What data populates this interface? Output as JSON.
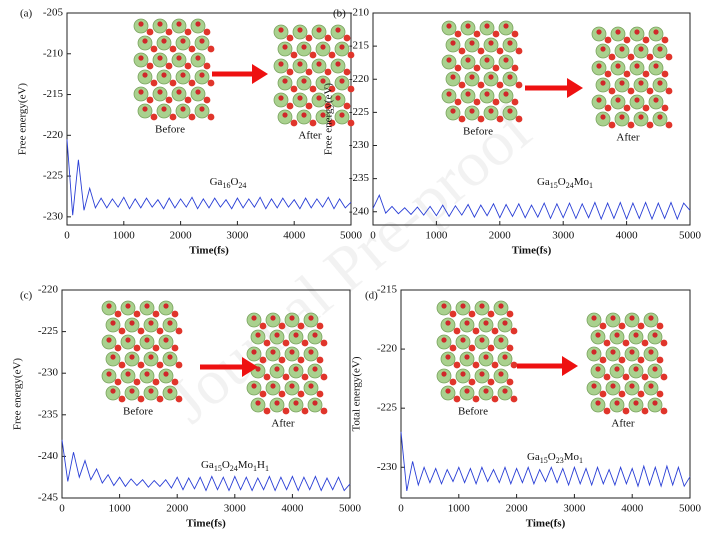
{
  "watermark": "Journal Pre-proof",
  "chart_data": [
    {
      "type": "line",
      "panel_label": "(a)",
      "formula": "Ga16O24",
      "x_label": "Time(fs)",
      "y_label": "Free energy(eV)",
      "annotations": [
        "Before",
        "After"
      ],
      "color": "#2a3fd6",
      "xlim": [
        0,
        5000
      ],
      "xticks": [
        0,
        1000,
        2000,
        3000,
        4000,
        5000
      ],
      "ylim": [
        -231,
        -205
      ],
      "yticks": [
        -205,
        -210,
        -215,
        -220,
        -225,
        -230
      ],
      "x": [
        0,
        100,
        200,
        300,
        400,
        500,
        600,
        700,
        800,
        900,
        1000,
        1100,
        1200,
        1300,
        1400,
        1500,
        1600,
        1700,
        1800,
        1900,
        2000,
        2100,
        2200,
        2300,
        2400,
        2500,
        2600,
        2700,
        2800,
        2900,
        3000,
        3100,
        3200,
        3300,
        3400,
        3500,
        3600,
        3700,
        3800,
        3900,
        4000,
        4100,
        4200,
        4300,
        4400,
        4500,
        4600,
        4700,
        4800,
        4900,
        5000
      ],
      "y": [
        -220.5,
        -229.8,
        -223,
        -229.2,
        -226.5,
        -228.9,
        -227.7,
        -228.9,
        -227.8,
        -228.8,
        -227.6,
        -229,
        -227.8,
        -228.9,
        -227.7,
        -228.8,
        -227.9,
        -229,
        -227.7,
        -228.9,
        -227.8,
        -228.8,
        -227.6,
        -229,
        -227.8,
        -228.9,
        -227.7,
        -228.8,
        -227.9,
        -229,
        -227.7,
        -228.9,
        -227.8,
        -228.8,
        -227.6,
        -229,
        -227.8,
        -228.9,
        -227.7,
        -228.8,
        -227.9,
        -229,
        -227.7,
        -228.9,
        -227.8,
        -228.8,
        -227.6,
        -229,
        -227.8,
        -228.9,
        -228.2
      ]
    },
    {
      "type": "line",
      "panel_label": "(b)",
      "formula": "Ga15O24Mo1",
      "x_label": "Time(fs)",
      "y_label": "Free energy(eV)",
      "annotations": [
        "Before",
        "After"
      ],
      "color": "#2a3fd6",
      "xlim": [
        0,
        5000
      ],
      "xticks": [
        0,
        1000,
        2000,
        3000,
        4000,
        5000
      ],
      "ylim": [
        -242,
        -210
      ],
      "yticks": [
        -210,
        -215,
        -220,
        -225,
        -230,
        -235,
        -240
      ],
      "x": [
        0,
        100,
        200,
        300,
        400,
        500,
        600,
        700,
        800,
        900,
        1000,
        1100,
        1200,
        1300,
        1400,
        1500,
        1600,
        1700,
        1800,
        1900,
        2000,
        2100,
        2200,
        2300,
        2400,
        2500,
        2600,
        2700,
        2800,
        2900,
        3000,
        3100,
        3200,
        3300,
        3400,
        3500,
        3600,
        3700,
        3800,
        3900,
        4000,
        4100,
        4200,
        4300,
        4400,
        4500,
        4600,
        4700,
        4800,
        4900,
        5000
      ],
      "y": [
        -239.5,
        -237.5,
        -240.2,
        -239.2,
        -240.3,
        -239.4,
        -240.4,
        -239.3,
        -240.5,
        -239.2,
        -240.6,
        -239,
        -240.7,
        -239.1,
        -240.5,
        -238.9,
        -240.8,
        -239,
        -240.6,
        -238.8,
        -240.9,
        -238.9,
        -240.7,
        -238.8,
        -240.9,
        -239,
        -240.8,
        -238.7,
        -241,
        -238.8,
        -240.9,
        -238.7,
        -241,
        -238.8,
        -240.9,
        -238.6,
        -241.1,
        -238.7,
        -241,
        -238.6,
        -241.1,
        -238.7,
        -241,
        -238.6,
        -241.1,
        -238.7,
        -241,
        -238.6,
        -241.1,
        -238.7,
        -239.8
      ]
    },
    {
      "type": "line",
      "panel_label": "(c)",
      "formula": "Ga15O24Mo1H1",
      "x_label": "Time(fs)",
      "y_label": "Free energy(eV)",
      "annotations": [
        "Before",
        "After"
      ],
      "color": "#2a3fd6",
      "xlim": [
        0,
        5000
      ],
      "xticks": [
        0,
        1000,
        2000,
        3000,
        4000,
        5000
      ],
      "ylim": [
        -245,
        -220
      ],
      "yticks": [
        -220,
        -225,
        -230,
        -235,
        -240,
        -245
      ],
      "x": [
        0,
        100,
        200,
        300,
        400,
        500,
        600,
        700,
        800,
        900,
        1000,
        1100,
        1200,
        1300,
        1400,
        1500,
        1600,
        1700,
        1800,
        1900,
        2000,
        2100,
        2200,
        2300,
        2400,
        2500,
        2600,
        2700,
        2800,
        2900,
        3000,
        3100,
        3200,
        3300,
        3400,
        3500,
        3600,
        3700,
        3800,
        3900,
        4000,
        4100,
        4200,
        4300,
        4400,
        4500,
        4600,
        4700,
        4800,
        4900,
        5000
      ],
      "y": [
        -238,
        -243,
        -239.5,
        -242.5,
        -240.5,
        -242.8,
        -241.5,
        -243.2,
        -242.2,
        -243.5,
        -242.5,
        -243.6,
        -242.7,
        -243.5,
        -242.8,
        -243.7,
        -242.9,
        -243.6,
        -242.8,
        -243.8,
        -242.5,
        -244,
        -242.6,
        -243.9,
        -242.5,
        -244.1,
        -242.4,
        -244,
        -242.5,
        -244.1,
        -242.4,
        -244,
        -242.5,
        -244.1,
        -242.6,
        -244,
        -242.4,
        -244.1,
        -242.5,
        -244,
        -242.4,
        -244.1,
        -242.5,
        -244,
        -242.4,
        -244.1,
        -242.6,
        -244,
        -242.5,
        -244.1,
        -243.3
      ]
    },
    {
      "type": "line",
      "panel_label": "(d)",
      "formula": "Ga15O23Mo1",
      "x_label": "Time(fs)",
      "y_label": "Total energy(eV)",
      "annotations": [
        "Before",
        "After"
      ],
      "color": "#2a3fd6",
      "xlim": [
        0,
        5000
      ],
      "xticks": [
        0,
        1000,
        2000,
        3000,
        4000,
        5000
      ],
      "ylim": [
        -232.6,
        -215
      ],
      "yticks": [
        -215,
        -220,
        -225,
        -230
      ],
      "x": [
        0,
        100,
        200,
        300,
        400,
        500,
        600,
        700,
        800,
        900,
        1000,
        1100,
        1200,
        1300,
        1400,
        1500,
        1600,
        1700,
        1800,
        1900,
        2000,
        2100,
        2200,
        2300,
        2400,
        2500,
        2600,
        2700,
        2800,
        2900,
        3000,
        3100,
        3200,
        3300,
        3400,
        3500,
        3600,
        3700,
        3800,
        3900,
        4000,
        4100,
        4200,
        4300,
        4400,
        4500,
        4600,
        4700,
        4800,
        4900,
        5000
      ],
      "y": [
        -227,
        -232,
        -229.5,
        -231.5,
        -230,
        -231.3,
        -230.1,
        -231.4,
        -230.2,
        -231.2,
        -230,
        -231.3,
        -230.1,
        -231.4,
        -230,
        -231.2,
        -230.2,
        -231.3,
        -230,
        -231.4,
        -230.1,
        -231.3,
        -230,
        -231.4,
        -230.2,
        -231.2,
        -230,
        -231.3,
        -230.1,
        -231.5,
        -230,
        -231.4,
        -230.1,
        -231.5,
        -230,
        -231.4,
        -230.2,
        -231.5,
        -230,
        -231.4,
        -230.1,
        -231.6,
        -229.9,
        -231.5,
        -230,
        -231.6,
        -229.9,
        -231.5,
        -230,
        -231.6,
        -230.8
      ]
    }
  ]
}
